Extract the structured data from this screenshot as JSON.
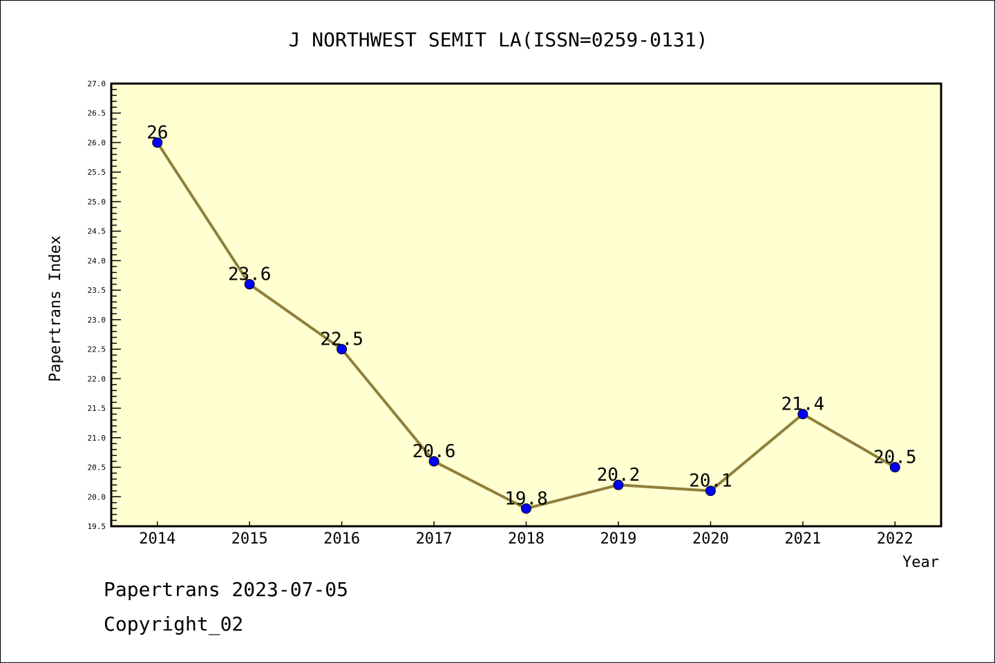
{
  "chart_data": {
    "type": "line",
    "title": "J NORTHWEST SEMIT LA(ISSN=0259-0131)",
    "xlabel": "Year",
    "ylabel": "Papertrans Index",
    "x": [
      2014,
      2015,
      2016,
      2017,
      2018,
      2019,
      2020,
      2021,
      2022
    ],
    "series": [
      {
        "name": "Papertrans Index",
        "values": [
          26,
          23.6,
          22.5,
          20.6,
          19.8,
          20.2,
          20.1,
          21.4,
          20.5
        ]
      }
    ],
    "data_labels": [
      "26",
      "23.6",
      "22.5",
      "20.6",
      "19.8",
      "20.2",
      "20.1",
      "21.4",
      "20.5"
    ],
    "xlim": [
      2013.5,
      2022.5
    ],
    "ylim": [
      19.5,
      27.0
    ],
    "yticks": [
      "19.5",
      "20.0",
      "20.5",
      "21.0",
      "21.5",
      "22.0",
      "22.5",
      "23.0",
      "23.5",
      "24.0",
      "24.5",
      "25.0",
      "25.5",
      "26.0",
      "26.5",
      "27.0"
    ],
    "xticks": [
      "2014",
      "2015",
      "2016",
      "2017",
      "2018",
      "2019",
      "2020",
      "2021",
      "2022"
    ],
    "grid": false,
    "colors": {
      "plot_bg": "#ffffd2",
      "line": "#8f7f3a",
      "marker": "#0000ff"
    }
  },
  "footer": {
    "line1": "Papertrans 2023-07-05",
    "line2": "Copyright_02"
  }
}
